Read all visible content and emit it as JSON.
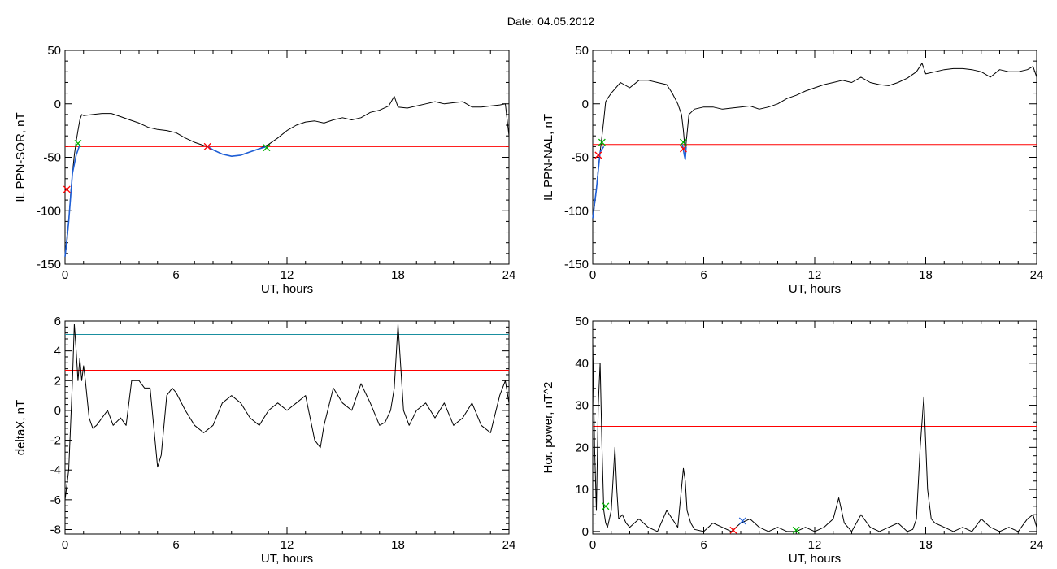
{
  "figure": {
    "date_label": "Date:  04.05.2012"
  },
  "chart_data": [
    {
      "type": "line",
      "ylabel": "IL PPN-SOR, nT",
      "xlabel": "UT, hours",
      "xlim": [
        0,
        24
      ],
      "ylim": [
        -150,
        50
      ],
      "xticks": [
        0,
        6,
        12,
        18,
        24
      ],
      "yticks": [
        -150,
        -100,
        -50,
        0,
        50
      ],
      "colors": {
        "main": "#000000",
        "threshold": "#ff0000",
        "segment": "#1f5fd6",
        "start_marker": "#00b000",
        "end_marker": "#ff0000"
      },
      "thresholds": [
        {
          "value": -40,
          "color": "#ff0000"
        }
      ],
      "series": [
        {
          "color": "#000000",
          "x": [
            0,
            0.1,
            0.2,
            0.3,
            0.4,
            0.5,
            0.6,
            0.7,
            0.8,
            0.9,
            1.0,
            1.5,
            2,
            2.5,
            3,
            3.5,
            4,
            4.5,
            5,
            5.5,
            6,
            6.5,
            7,
            7.5,
            7.7,
            8,
            8.5,
            9,
            9.5,
            10,
            10.5,
            11,
            11.5,
            12,
            12.5,
            13,
            13.5,
            14,
            14.5,
            15,
            15.5,
            16,
            16.5,
            17,
            17.5,
            17.8,
            18,
            18.5,
            19,
            19.5,
            20,
            20.5,
            21,
            21.5,
            22,
            22.5,
            23,
            23.5,
            23.8,
            24
          ],
          "y": [
            -143,
            -130,
            -110,
            -85,
            -65,
            -48,
            -35,
            -25,
            -15,
            -10,
            -11,
            -10,
            -9,
            -9,
            -12,
            -15,
            -18,
            -22,
            -24,
            -25,
            -27,
            -32,
            -36,
            -39,
            -40,
            -43,
            -47,
            -49,
            -48,
            -45,
            -42,
            -38,
            -32,
            -25,
            -20,
            -17,
            -16,
            -18,
            -15,
            -13,
            -15,
            -13,
            -8,
            -6,
            -2,
            7,
            -3,
            -4,
            -2,
            0,
            2,
            0,
            1,
            2,
            -3,
            -3,
            -2,
            -1,
            0,
            -30
          ]
        },
        {
          "color": "#1f5fd6",
          "x": [
            0,
            0.2,
            0.4,
            0.6,
            0.8
          ],
          "y": [
            -143,
            -110,
            -65,
            -48,
            -38
          ]
        },
        {
          "color": "#1f5fd6",
          "x": [
            7.7,
            8,
            8.5,
            9,
            9.5,
            10,
            10.5,
            10.9
          ],
          "y": [
            -40,
            -43,
            -47,
            -49,
            -48,
            -45,
            -42,
            -40
          ]
        }
      ],
      "markers": [
        {
          "x": 0.7,
          "y": -37,
          "color": "#00b000"
        },
        {
          "x": 0.1,
          "y": -80,
          "color": "#ff0000"
        },
        {
          "x": 7.7,
          "y": -40,
          "color": "#ff0000"
        },
        {
          "x": 10.9,
          "y": -41,
          "color": "#00b000"
        }
      ]
    },
    {
      "type": "line",
      "ylabel": "IL PPN-NAL, nT",
      "xlabel": "UT, hours",
      "xlim": [
        0,
        24
      ],
      "ylim": [
        -150,
        50
      ],
      "xticks": [
        0,
        6,
        12,
        18,
        24
      ],
      "yticks": [
        -150,
        -100,
        -50,
        0,
        50
      ],
      "colors": {
        "main": "#000000",
        "threshold": "#ff0000",
        "segment": "#1f5fd6",
        "start_marker": "#00b000",
        "end_marker": "#ff0000"
      },
      "thresholds": [
        {
          "value": -38,
          "color": "#ff0000"
        }
      ],
      "series": [
        {
          "color": "#000000",
          "x": [
            0,
            0.1,
            0.2,
            0.3,
            0.4,
            0.5,
            0.6,
            0.7,
            0.8,
            1.0,
            1.5,
            2,
            2.5,
            3,
            3.5,
            4,
            4.3,
            4.6,
            4.8,
            4.9,
            5.0,
            5.2,
            5.5,
            6,
            6.5,
            7,
            7.5,
            8,
            8.5,
            9,
            9.5,
            10,
            10.5,
            11,
            11.5,
            12,
            12.5,
            13,
            13.5,
            14,
            14.5,
            15,
            15.5,
            16,
            16.5,
            17,
            17.5,
            17.8,
            18,
            18.5,
            19,
            19.5,
            20,
            20.5,
            21,
            21.5,
            22,
            22.5,
            23,
            23.5,
            23.8,
            24
          ],
          "y": [
            -107,
            -95,
            -80,
            -60,
            -45,
            -30,
            -15,
            2,
            5,
            10,
            20,
            15,
            22,
            22,
            20,
            18,
            10,
            0,
            -10,
            -25,
            -45,
            -10,
            -5,
            -3,
            -3,
            -5,
            -4,
            -3,
            -2,
            -5,
            -3,
            0,
            5,
            8,
            12,
            15,
            18,
            20,
            22,
            20,
            25,
            20,
            18,
            17,
            20,
            24,
            30,
            38,
            28,
            30,
            32,
            33,
            33,
            32,
            30,
            25,
            32,
            30,
            30,
            32,
            35,
            25
          ]
        },
        {
          "color": "#1f5fd6",
          "x": [
            0,
            0.2,
            0.4,
            0.6
          ],
          "y": [
            -107,
            -80,
            -45,
            -40
          ]
        },
        {
          "color": "#1f5fd6",
          "x": [
            4.85,
            4.9,
            4.95,
            5.0,
            5.05
          ],
          "y": [
            -38,
            -43,
            -48,
            -52,
            -40
          ]
        }
      ],
      "markers": [
        {
          "x": 0.5,
          "y": -36,
          "color": "#00b000"
        },
        {
          "x": 0.3,
          "y": -48,
          "color": "#ff0000"
        },
        {
          "x": 4.9,
          "y": -36,
          "color": "#00b000"
        },
        {
          "x": 4.9,
          "y": -42,
          "color": "#ff0000"
        }
      ]
    },
    {
      "type": "line",
      "ylabel": "deltaX, nT",
      "xlabel": "UT, hours",
      "xlim": [
        0,
        24
      ],
      "ylim": [
        -8.3,
        6
      ],
      "xticks": [
        0,
        6,
        12,
        18,
        24
      ],
      "yticks": [
        -8,
        -6,
        -4,
        -2,
        0,
        2,
        4,
        6
      ],
      "colors": {
        "main": "#000000",
        "threshold_high": "#1a8fa0",
        "threshold_low": "#ff0000"
      },
      "thresholds": [
        {
          "value": 5.1,
          "color": "#1a8fa0"
        },
        {
          "value": 2.7,
          "color": "#ff0000"
        }
      ],
      "series": [
        {
          "color": "#000000",
          "x": [
            0,
            0.2,
            0.4,
            0.5,
            0.6,
            0.7,
            0.8,
            0.9,
            1.0,
            1.1,
            1.3,
            1.5,
            1.7,
            2,
            2.3,
            2.6,
            3,
            3.3,
            3.6,
            4,
            4.3,
            4.6,
            5,
            5.2,
            5.5,
            5.8,
            6,
            6.5,
            7,
            7.5,
            8,
            8.5,
            9,
            9.5,
            10,
            10.5,
            11,
            11.5,
            12,
            12.5,
            13,
            13.5,
            13.8,
            14,
            14.5,
            15,
            15.5,
            16,
            16.5,
            17,
            17.3,
            17.6,
            17.8,
            18,
            18.3,
            18.6,
            19,
            19.5,
            20,
            20.5,
            21,
            21.5,
            22,
            22.5,
            23,
            23.5,
            23.8,
            24
          ],
          "y": [
            -6,
            -4,
            2,
            5.8,
            4,
            2,
            3.5,
            2,
            3,
            2,
            -0.5,
            -1.2,
            -1,
            -0.5,
            0,
            -1,
            -0.5,
            -1,
            2,
            2,
            1.5,
            1.5,
            -3.8,
            -3,
            1,
            1.5,
            1.2,
            0,
            -1,
            -1.5,
            -1,
            0.5,
            1,
            0.5,
            -0.5,
            -1,
            0,
            0.5,
            0,
            0.5,
            1,
            -2,
            -2.5,
            -1,
            1.5,
            0.5,
            0,
            1.8,
            0.5,
            -1,
            -0.8,
            0,
            1.5,
            5.8,
            0,
            -1,
            0,
            0.5,
            -0.5,
            0.5,
            -1,
            -0.5,
            0.5,
            -1,
            -1.5,
            1,
            2,
            0.5
          ]
        }
      ],
      "markers": []
    },
    {
      "type": "line",
      "ylabel": "Hor. power, nT^2",
      "xlabel": "UT, hours",
      "xlim": [
        0,
        24
      ],
      "ylim": [
        -0.6,
        50
      ],
      "xticks": [
        0,
        6,
        12,
        18,
        24
      ],
      "yticks": [
        0,
        10,
        20,
        30,
        40,
        50
      ],
      "colors": {
        "main": "#000000",
        "threshold": "#ff0000",
        "markers": "#00b000",
        "blue_marker": "#1f5fd6"
      },
      "thresholds": [
        {
          "value": 25,
          "color": "#ff0000"
        }
      ],
      "series": [
        {
          "color": "#000000",
          "x": [
            0,
            0.1,
            0.2,
            0.3,
            0.4,
            0.5,
            0.6,
            0.7,
            0.8,
            1.0,
            1.2,
            1.3,
            1.4,
            1.6,
            1.8,
            2,
            2.5,
            3,
            3.5,
            4,
            4.3,
            4.6,
            4.9,
            5.0,
            5.1,
            5.3,
            5.5,
            6,
            6.5,
            7,
            7.5,
            8,
            8.5,
            9,
            9.5,
            10,
            10.5,
            11,
            11.5,
            12,
            12.5,
            13,
            13.3,
            13.6,
            14,
            14.5,
            15,
            15.5,
            16,
            16.5,
            17,
            17.3,
            17.5,
            17.7,
            17.9,
            18.1,
            18.3,
            18.5,
            19,
            19.5,
            20,
            20.5,
            21,
            21.5,
            22,
            22.5,
            23,
            23.5,
            23.8,
            24
          ],
          "y": [
            45,
            20,
            5,
            30,
            40,
            20,
            5,
            2,
            1,
            5,
            20,
            10,
            3,
            4,
            2,
            1,
            3,
            1,
            0,
            5,
            3,
            1,
            15,
            12,
            5,
            2,
            0.5,
            0,
            2,
            1,
            0,
            2,
            3,
            1,
            0,
            1,
            0,
            0,
            1,
            0,
            1,
            3,
            8,
            2,
            0,
            4,
            1,
            0,
            1,
            2,
            0,
            0.5,
            3,
            20,
            32,
            10,
            3,
            2,
            1,
            0,
            1,
            0,
            3,
            1,
            0,
            1,
            0,
            3,
            4,
            1
          ]
        }
      ],
      "markers": [
        {
          "x": 0.7,
          "y": 6,
          "color": "#00b000"
        },
        {
          "x": 8.1,
          "y": 2.5,
          "color": "#1f5fd6"
        },
        {
          "x": 11.0,
          "y": 0.3,
          "color": "#00b000"
        },
        {
          "x": 7.6,
          "y": 0.3,
          "color": "#ff0000"
        }
      ]
    }
  ]
}
